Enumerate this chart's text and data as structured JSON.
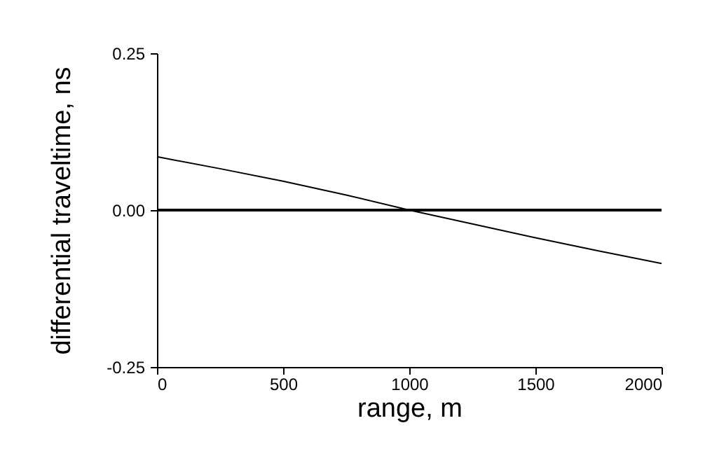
{
  "chart_data": {
    "type": "line",
    "xlabel": "range, m",
    "ylabel": "differential traveltime, ns",
    "x": [
      0,
      250,
      500,
      750,
      1000,
      1250,
      1500,
      1750,
      2000
    ],
    "series": [
      {
        "color": "#000000",
        "values": [
          0.085,
          0.066,
          0.046,
          0.024,
          0.0,
          -0.022,
          -0.044,
          -0.065,
          -0.085
        ]
      }
    ],
    "xlim": [
      0,
      2000
    ],
    "xticks": [
      0,
      500,
      1000,
      1500,
      2000
    ],
    "ylim": [
      -0.25,
      0.25
    ],
    "yticks": [
      -0.25,
      {
        "value": 0,
        "label": "0.00"
      },
      0.25
    ],
    "ref_lines": [
      {
        "axis": "y",
        "value": 0,
        "color": "#000000"
      }
    ],
    "grid": false,
    "marker": "none",
    "line_style": "solid"
  }
}
